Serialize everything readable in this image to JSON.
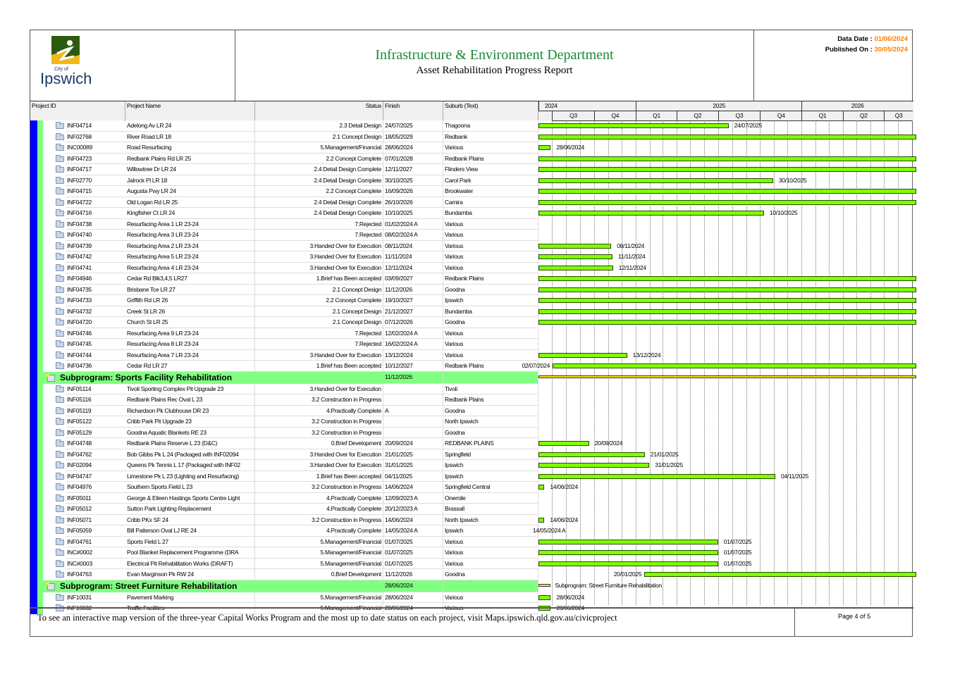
{
  "header": {
    "logo_text_small": "City of",
    "logo_text": "Ipswich",
    "title": "Infrastructure & Environment Department",
    "subtitle": "Asset Rehabilitation Progress Report",
    "data_date_label": "Data Date : ",
    "data_date": "01/06/2024",
    "published_label": "Published On : ",
    "published": "30/05/2024"
  },
  "columns": {
    "id": "Project ID",
    "name": "Project Name",
    "status": "Status",
    "finish": "Finish",
    "suburb": "Suburb (Text)"
  },
  "timeline": {
    "years": [
      {
        "label": "2024",
        "year": 2024
      },
      {
        "label": "2025",
        "year": 2025
      },
      {
        "label": "2026",
        "year": 2026
      }
    ],
    "quarters": [
      {
        "label": "Q3",
        "start": "01/07/2024"
      },
      {
        "label": "Q4",
        "start": "01/10/2024"
      },
      {
        "label": "Q1",
        "start": "01/01/2025"
      },
      {
        "label": "Q2",
        "start": "01/04/2025"
      },
      {
        "label": "Q3",
        "start": "01/07/2025"
      },
      {
        "label": "Q4",
        "start": "01/10/2025"
      },
      {
        "label": "Q1",
        "start": "01/01/2026"
      },
      {
        "label": "Q2",
        "start": "01/04/2026"
      },
      {
        "label": "Q3",
        "start": "01/07/2026"
      }
    ],
    "view_start": "01/06/2024"
  },
  "rows": [
    {
      "id": "INF04714",
      "name": "Adelong Av LR 24",
      "status": "2.3 Detail Design",
      "finish": "24/07/2025",
      "suburb": "Thagoona",
      "bar": {
        "end": "24/07/2025",
        "label": "24/07/2025"
      }
    },
    {
      "id": "INF02768",
      "name": "River Road LR 18",
      "status": "2.1 Concept Design",
      "finish": "18/05/2029",
      "suburb": "Redbank",
      "bar": {
        "end": "18/05/2029"
      }
    },
    {
      "id": "INC00089",
      "name": "Road Resurfacing",
      "status": "5.Management/Financial",
      "finish": "28/06/2024",
      "suburb": "Various",
      "bar": {
        "end": "28/06/2024",
        "label": "28/06/2024"
      }
    },
    {
      "id": "INF04723",
      "name": "Redbank Plains Rd LR 25",
      "status": "2.2 Concept Complete",
      "finish": "07/01/2028",
      "suburb": "Redbank Plains",
      "bar": {
        "end": "07/01/2028"
      }
    },
    {
      "id": "INF04717",
      "name": "Willowtree Dr LR 24",
      "status": "2.4 Detail Design Complete",
      "finish": "12/11/2027",
      "suburb": "Flinders View",
      "bar": {
        "end": "12/11/2027"
      }
    },
    {
      "id": "INF02770",
      "name": "Jalrock Pl LR 18",
      "status": "2.4 Detail Design Complete",
      "finish": "30/10/2025",
      "suburb": "Carol Park",
      "bar": {
        "end": "30/10/2025",
        "label": "30/10/2025"
      }
    },
    {
      "id": "INF04715",
      "name": "Augusta Pwy LR 24",
      "status": "2.2 Concept Complete",
      "finish": "16/09/2026",
      "suburb": "Brookwater",
      "bar": {
        "end": "16/09/2026"
      }
    },
    {
      "id": "INF04722",
      "name": "Old Logan Rd LR 25",
      "status": "2.4 Detail Design Complete",
      "finish": "26/10/2026",
      "suburb": "Camira",
      "bar": {
        "end": "26/10/2026"
      }
    },
    {
      "id": "INF04716",
      "name": "Kingfisher Ct LR 24",
      "status": "2.4 Detail Design Complete",
      "finish": "10/10/2025",
      "suburb": "Bundamba",
      "bar": {
        "end": "10/10/2025",
        "label": "10/10/2025"
      }
    },
    {
      "id": "INF04738",
      "name": "Resurfacing Area 1 LR 23-24",
      "status": "7.Rejected",
      "finish": "01/02/2024 A",
      "suburb": "Various"
    },
    {
      "id": "INF04740",
      "name": "Resurfacing Area 3 LR 23-24",
      "status": "7.Rejected",
      "finish": "08/02/2024 A",
      "suburb": "Various"
    },
    {
      "id": "INF04739",
      "name": "Resurfacing Area 2 LR 23-24",
      "status": "3.Handed Over for Execution",
      "finish": "08/11/2024",
      "suburb": "Various",
      "bar": {
        "end": "08/11/2024",
        "label": "08/11/2024"
      }
    },
    {
      "id": "INF04742",
      "name": "Resurfacing Area 5 LR 23-24",
      "status": "3.Handed Over for Execution",
      "finish": "11/11/2024",
      "suburb": "Various",
      "bar": {
        "end": "11/11/2024",
        "label": "11/11/2024"
      }
    },
    {
      "id": "INF04741",
      "name": "Resurfacing Area 4 LR 23-24",
      "status": "3.Handed Over for Execution",
      "finish": "12/11/2024",
      "suburb": "Various",
      "bar": {
        "end": "12/11/2024",
        "label": "12/11/2024"
      }
    },
    {
      "id": "INF04946",
      "name": "Cedar Rd Blk3,4,5 LR27",
      "status": "1.Brief has Been accepted",
      "finish": "03/09/2027",
      "suburb": "Redbank Plains",
      "bar": {
        "end": "03/09/2027"
      }
    },
    {
      "id": "INF04735",
      "name": "Brisbane Tce LR 27",
      "status": "2.1 Concept Design",
      "finish": "11/12/2026",
      "suburb": "Goodna",
      "bar": {
        "end": "11/12/2026"
      }
    },
    {
      "id": "INF04733",
      "name": "Griffith Rd LR 26",
      "status": "2.2 Concept Complete",
      "finish": "19/10/2027",
      "suburb": "Ipswich",
      "bar": {
        "end": "19/10/2027"
      }
    },
    {
      "id": "INF04732",
      "name": "Creek St LR 26",
      "status": "2.1 Concept Design",
      "finish": "21/12/2027",
      "suburb": "Bundamba",
      "bar": {
        "end": "21/12/2027"
      }
    },
    {
      "id": "INF04720",
      "name": "Church St LR 25",
      "status": "2.1 Concept Design",
      "finish": "07/12/2026",
      "suburb": "Goodna",
      "bar": {
        "end": "07/12/2026"
      }
    },
    {
      "id": "INF04746",
      "name": "Resurfacing Area 9 LR 23-24",
      "status": "7.Rejected",
      "finish": "12/02/2024 A",
      "suburb": "Various"
    },
    {
      "id": "INF04745",
      "name": "Resurfacing Area 8 LR 23-24",
      "status": "7.Rejected",
      "finish": "16/02/2024 A",
      "suburb": "Various"
    },
    {
      "id": "INF04744",
      "name": "Resurfacing Area 7 LR 23-24",
      "status": "3.Handed Over for Execution",
      "finish": "13/12/2024",
      "suburb": "Various",
      "bar": {
        "end": "13/12/2024",
        "label": "13/12/2024"
      }
    },
    {
      "id": "INF04736",
      "name": "Cedar Rd  LR 27",
      "status": "1.Brief has Been accepted",
      "finish": "10/12/2027",
      "suburb": "Redbank Plains",
      "bar": {
        "start": "02/07/2024",
        "end": "10/12/2027",
        "start_label": "02/07/2024"
      }
    },
    {
      "subprogram": true,
      "name": "Subprogram: Sports Facility Rehabilitation",
      "finish": "11/12/2026",
      "bar": {
        "end": "11/12/2026",
        "summary": true
      }
    },
    {
      "id": "INF05114",
      "name": "Tivoli Sporting Complex Pit Upgrade 23",
      "status": "3.Handed Over for Execution",
      "finish": "",
      "suburb": "Tivoli"
    },
    {
      "id": "INF05116",
      "name": "Redbank Plains Rec Oval L 23",
      "status": "3.2 Construction in Progress",
      "finish": "",
      "suburb": "Redbank Plains"
    },
    {
      "id": "INF05119",
      "name": "Richardson Pk Clubhouse DR 23",
      "status": "4.Practically Complete",
      "finish": "A",
      "suburb": "Goodna"
    },
    {
      "id": "INF05122",
      "name": "Cribb Park Pit Upgrade 23",
      "status": "3.2 Construction in Progress",
      "finish": "",
      "suburb": "North Ipswich"
    },
    {
      "id": "INF05129",
      "name": "Goodna Aquatic Blankets RE 23",
      "status": "3.2 Construction in Progress",
      "finish": "",
      "suburb": "Goodna"
    },
    {
      "id": "INF04748",
      "name": "Redbank Plains Reserve L 23 (D&C)",
      "status": "0.Brief Development",
      "finish": "20/09/2024",
      "suburb": "REDBANK PLAINS",
      "bar": {
        "end": "20/09/2024",
        "label": "20/09/2024"
      }
    },
    {
      "id": "INF04762",
      "name": "Bob Gibbs Pk L 24  (Packaged with INF02094",
      "status": "3.Handed Over for Execution",
      "finish": "21/01/2025",
      "suburb": "Springfield",
      "bar": {
        "end": "21/01/2025",
        "label": "21/01/2025"
      }
    },
    {
      "id": "INF02094",
      "name": "Queens Pk Tennis L 17 (Packaged with INF02",
      "status": "3.Handed Over for Execution",
      "finish": "31/01/2025",
      "suburb": "Ipswich",
      "bar": {
        "end": "31/01/2025",
        "label": "31/01/2025"
      }
    },
    {
      "id": "INF04747",
      "name": "Limestone Pk L 23 (Lighting and Resurfacing)",
      "status": "1.Brief has Been accepted",
      "finish": "04/11/2025",
      "suburb": "Ipswich",
      "bar": {
        "end": "04/11/2025",
        "label": "04/11/2025"
      }
    },
    {
      "id": "INF04976",
      "name": "Southern Sports Field L 23",
      "status": "3.2 Construction in Progress",
      "finish": "14/06/2024",
      "suburb": "Springfield Central",
      "bar": {
        "end": "14/06/2024",
        "label": "14/06/2024"
      }
    },
    {
      "id": "INF05011",
      "name": "George & Eileen Hastings Sports Centre Light",
      "status": "4.Practically Complete",
      "finish": "12/09/2023 A",
      "suburb": "Onemile"
    },
    {
      "id": "INF05012",
      "name": "Sutton Park Lighting Replacement",
      "status": "4.Practically Complete",
      "finish": "20/12/2023 A",
      "suburb": "Brassall"
    },
    {
      "id": "INF05071",
      "name": "Cribb PKx SF 24",
      "status": "3.2 Construction in Progress",
      "finish": "14/06/2024",
      "suburb": "North Ipswich",
      "bar": {
        "end": "14/06/2024",
        "label": "14/06/2024"
      }
    },
    {
      "id": "INF05059",
      "name": "Bill Patterson Oval LJ RE 24",
      "status": "4.Practically Complete",
      "finish": "14/05/2024 A",
      "suburb": "Ipswich",
      "bar": {
        "end": "14/05/2024",
        "label": "14/05/2024 A",
        "hidden_bar": true
      }
    },
    {
      "id": "INF04761",
      "name": "Sports Field L 27",
      "status": "5.Management/Financial",
      "finish": "01/07/2025",
      "suburb": "Various",
      "bar": {
        "end": "01/07/2025",
        "label": "01/07/2025"
      }
    },
    {
      "id": "INC#0002",
      "name": "Pool Blanket Replacement Programme (DRA",
      "status": "5.Management/Financial",
      "finish": "01/07/2025",
      "suburb": "Various",
      "bar": {
        "end": "01/07/2025",
        "label": "01/07/2025"
      }
    },
    {
      "id": "INC#0003",
      "name": "Electrical Pit Rehabilitation Works (DRAFT)",
      "status": "5.Management/Financial",
      "finish": "01/07/2025",
      "suburb": "Various",
      "bar": {
        "end": "01/07/2025",
        "label": "01/07/2025"
      }
    },
    {
      "id": "INF04763",
      "name": "Evan Marginson Pk RW 24",
      "status": "0.Brief Development",
      "finish": "11/12/2026",
      "suburb": "Goodna",
      "bar": {
        "start": "20/01/2025",
        "end": "11/12/2026",
        "start_label": "20/01/2025"
      }
    },
    {
      "subprogram": true,
      "name": "Subprogram: Street Furniture Rehabilitation",
      "finish": "28/06/2024",
      "bar": {
        "end": "28/06/2024",
        "summary": true,
        "label": "Subprogram: Street Furniture Rehabilitation"
      }
    },
    {
      "id": "INF10031",
      "name": "Pavement Marking",
      "status": "5.Management/Financial",
      "finish": "28/06/2024",
      "suburb": "Various",
      "bar": {
        "end": "28/06/2024",
        "label": "28/06/2024"
      }
    },
    {
      "id": "INF10032",
      "name": "Traffic Facilities",
      "status": "5.Management/Financial",
      "finish": "28/06/2024",
      "suburb": "Various",
      "bar": {
        "end": "28/06/2024",
        "label": "28/06/2024"
      }
    }
  ],
  "footer": {
    "text": "To see an interactive map version of the three-year Capital Works Program and the most up to date status on each project, visit Maps.ipswich.qld.gov.au/civicproject",
    "page": "Page 4 of 5"
  },
  "colors": {
    "bar": "#80ff00",
    "summary": "#ffe800",
    "subprogram_bg": "#80ff80",
    "accent": "#ff7f00",
    "title": "#1a8a3a"
  }
}
